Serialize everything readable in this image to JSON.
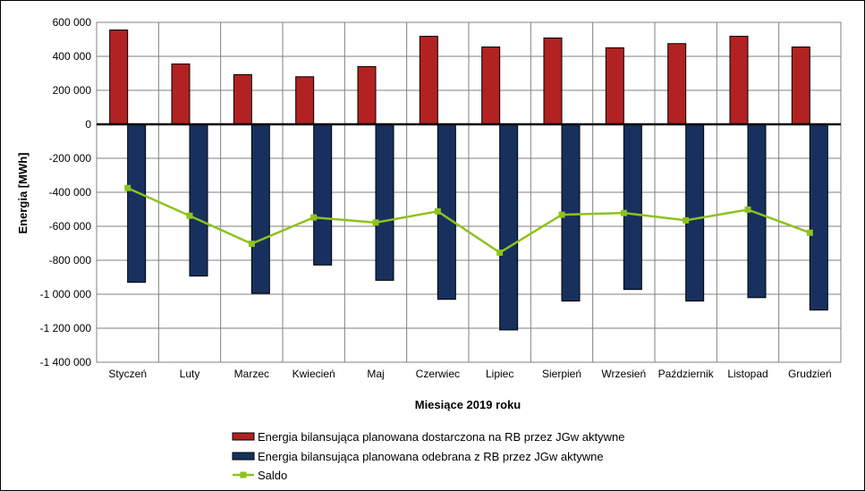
{
  "chart_data": {
    "type": "bar",
    "categories": [
      "Styczeń",
      "Luty",
      "Marzec",
      "Kwiecień",
      "Maj",
      "Czerwiec",
      "Lipiec",
      "Sierpień",
      "Wrzesień",
      "Październik",
      "Listopad",
      "Grudzień"
    ],
    "series": [
      {
        "name": "Energia bilansująca planowana dostarczona na RB przez JGw aktywne",
        "type": "bar",
        "color": "#b22222",
        "values": [
          555000,
          355000,
          292000,
          280000,
          340000,
          518000,
          455000,
          508000,
          450000,
          475000,
          518000,
          455000
        ]
      },
      {
        "name": "Energia bilansująca planowana odebrana z RB przez JGw aktywne",
        "type": "bar",
        "color": "#17305e",
        "values": [
          -930000,
          -893000,
          -995000,
          -828000,
          -918000,
          -1030000,
          -1210000,
          -1040000,
          -972000,
          -1040000,
          -1020000,
          -1093000
        ]
      },
      {
        "name": "Saldo",
        "type": "line",
        "color": "#8dc21f",
        "values": [
          -375000,
          -538000,
          -703000,
          -548000,
          -578000,
          -512000,
          -755000,
          -532000,
          -522000,
          -565000,
          -502000,
          -638000
        ]
      }
    ],
    "ylim": [
      -1400000,
      600000
    ],
    "yticks": [
      600000,
      400000,
      200000,
      0,
      -200000,
      -400000,
      -600000,
      -800000,
      -1000000,
      -1200000,
      -1400000
    ],
    "ytick_labels": [
      "600 000",
      "400 000",
      "200 000",
      "0",
      "-200 000",
      "-400 000",
      "-600 000",
      "-800 000",
      "-1 000 000",
      "-1 200 000",
      "-1 400 000"
    ],
    "xlabel": "Miesiące 2019  roku",
    "ylabel": "Energia  [MWh]",
    "grid": true,
    "legend_position": "bottom"
  }
}
